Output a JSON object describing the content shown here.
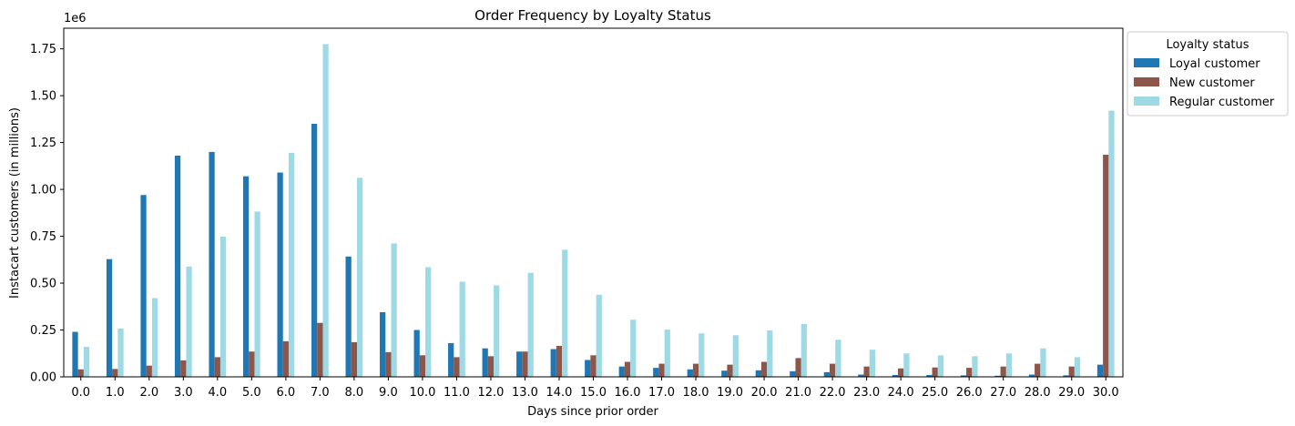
{
  "chart_data": {
    "type": "bar",
    "title": "Order Frequency by Loyalty Status",
    "xlabel": "Days since prior order",
    "ylabel": "Instacart customers (in millions)",
    "y_offset_label": "1e6",
    "ylim": [
      0,
      1860000
    ],
    "yticks": [
      0,
      250000,
      500000,
      750000,
      1000000,
      1250000,
      1500000,
      1750000
    ],
    "ytick_labels": [
      "0.00",
      "0.25",
      "0.50",
      "0.75",
      "1.00",
      "1.25",
      "1.50",
      "1.75"
    ],
    "categories": [
      "0.0",
      "1.0",
      "2.0",
      "3.0",
      "4.0",
      "5.0",
      "6.0",
      "7.0",
      "8.0",
      "9.0",
      "10.0",
      "11.0",
      "12.0",
      "13.0",
      "14.0",
      "15.0",
      "16.0",
      "17.0",
      "18.0",
      "19.0",
      "20.0",
      "21.0",
      "22.0",
      "23.0",
      "24.0",
      "25.0",
      "26.0",
      "27.0",
      "28.0",
      "29.0",
      "30.0"
    ],
    "legend": {
      "title": "Loyalty status",
      "placement": "outside-top-right"
    },
    "grid": false,
    "series": [
      {
        "name": "Loyal customer",
        "color": "#1f77b4",
        "values": [
          240000,
          628000,
          970000,
          1180000,
          1200000,
          1070000,
          1090000,
          1350000,
          642000,
          345000,
          250000,
          180000,
          152000,
          135000,
          148000,
          90000,
          55000,
          48000,
          40000,
          33000,
          35000,
          30000,
          25000,
          12000,
          10000,
          10000,
          8000,
          6000,
          12000,
          8000,
          65000
        ]
      },
      {
        "name": "New customer",
        "color": "#8c564b",
        "values": [
          40000,
          42000,
          60000,
          88000,
          105000,
          135000,
          190000,
          288000,
          185000,
          132000,
          115000,
          105000,
          110000,
          135000,
          165000,
          115000,
          80000,
          70000,
          70000,
          65000,
          80000,
          100000,
          70000,
          55000,
          45000,
          50000,
          48000,
          55000,
          70000,
          55000,
          1185000
        ]
      },
      {
        "name": "Regular customer",
        "color": "#9edae5",
        "values": [
          160000,
          258000,
          420000,
          588000,
          748000,
          882000,
          1195000,
          1775000,
          1062000,
          712000,
          585000,
          508000,
          488000,
          555000,
          678000,
          438000,
          305000,
          252000,
          232000,
          222000,
          248000,
          282000,
          198000,
          145000,
          125000,
          115000,
          110000,
          125000,
          152000,
          105000,
          1420000
        ]
      }
    ]
  }
}
